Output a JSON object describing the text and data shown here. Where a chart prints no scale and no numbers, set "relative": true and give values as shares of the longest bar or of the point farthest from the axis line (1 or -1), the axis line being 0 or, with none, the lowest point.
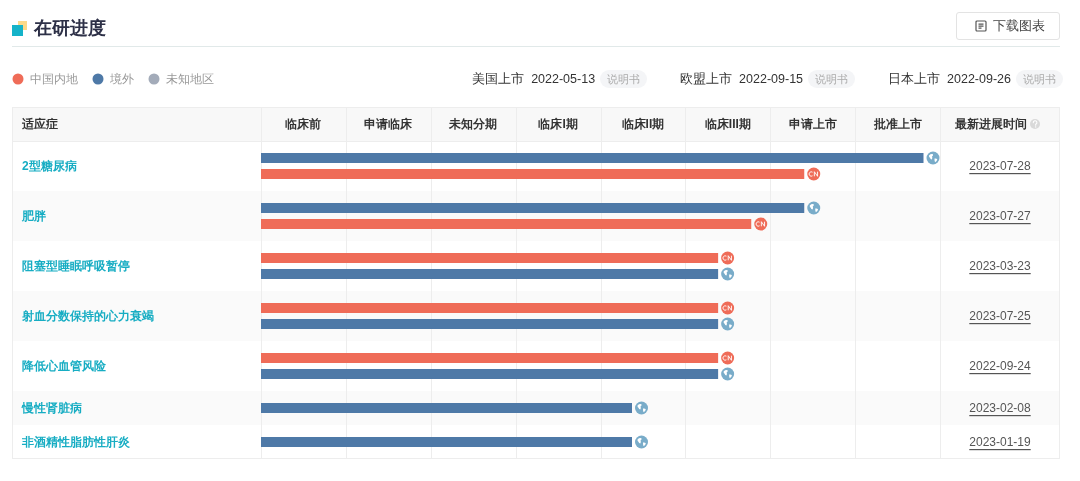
{
  "chart_data": {
    "type": "bar",
    "orientation": "horizontal",
    "relative": true,
    "title": "在研进度",
    "ylabel": "适应症",
    "y2label": "最新进展时间",
    "categories": [
      "2型糖尿病",
      "肥胖",
      "阻塞型睡眠呼吸暂停",
      "射血分数保持的心力衰竭",
      "降低心血管风险",
      "慢性肾脏病",
      "非酒精性脂肪性肝炎"
    ],
    "y2_categories": [
      "2023-07-28",
      "2023-07-27",
      "2023-03-23",
      "2023-07-25",
      "2022-09-24",
      "2023-02-08",
      "2023-01-19"
    ],
    "series": [
      {
        "name": "中国内地",
        "color": "#ef6c58",
        "values": [
          0.82,
          0.74,
          0.69,
          0.69,
          0.69,
          null,
          null
        ]
      },
      {
        "name": "境外",
        "color": "#4e79a7",
        "values": [
          1,
          0.82,
          0.69,
          0.69,
          0.69,
          0.56,
          0.56
        ]
      },
      {
        "name": "未知地区",
        "color": "#a3abb9",
        "values": [
          null,
          null,
          null,
          null,
          null,
          null,
          null
        ]
      }
    ],
    "legend": "top left",
    "annotations": [
      "下载图表",
      "美国上市",
      "2022-05-13",
      "说明书",
      "欧盟上市",
      "2022-09-15",
      "说明书",
      "日本上市",
      "2022-09-26",
      "说明书",
      "临床前",
      "申请临床",
      "未知分期",
      "临床I期",
      "临床II期",
      "临床III期",
      "申请上市",
      "批准上市"
    ]
  }
}
